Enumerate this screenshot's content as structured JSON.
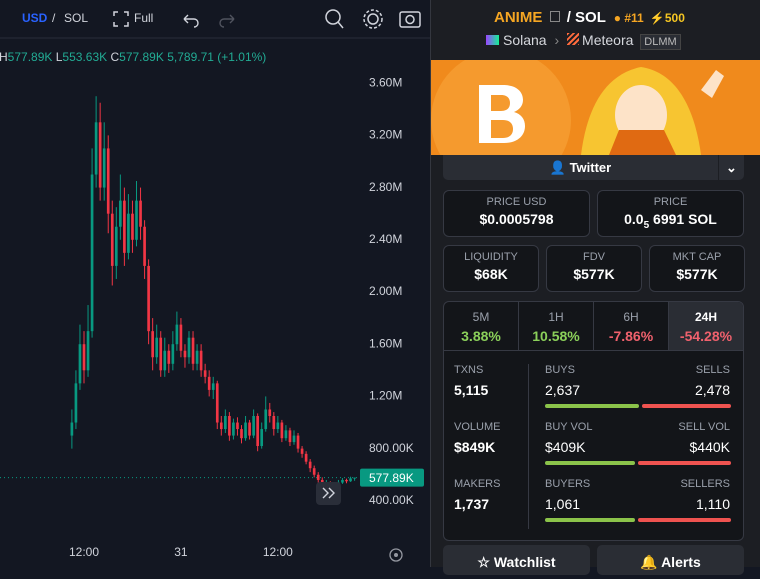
{
  "toolbar": {
    "currency": "USD",
    "separator": "/",
    "quote": "SOL",
    "full": "Full"
  },
  "readout": {
    "high_key": "H",
    "high": "577.89K",
    "low_key": "L",
    "low": "553.63K",
    "close_key": "C",
    "close": "577.89K",
    "change": "5,789.71 (+1.01%)"
  },
  "chart_data": {
    "type": "candlestick",
    "x": [
      10.5,
      11,
      11.5,
      12,
      12.5,
      13,
      13.5,
      14,
      14.5,
      15,
      15.5,
      16,
      16.5,
      17,
      17.5,
      18,
      18.5,
      19,
      19.5,
      20,
      20.5,
      21,
      21.5,
      22,
      22.5,
      23,
      23.5,
      24,
      24.5,
      25,
      25.5,
      26,
      26.5,
      27,
      27.5,
      28,
      28.5,
      29,
      29.5,
      30,
      30.5,
      31,
      31.5,
      32,
      32.5,
      33,
      33.5,
      34,
      34.5,
      35,
      35.5,
      36,
      36.5,
      37,
      37.5,
      38,
      38.5,
      39,
      39.5,
      40,
      40.5,
      41,
      41.5,
      42,
      42.5,
      43,
      43.5,
      44,
      44.5,
      45,
      45.5
    ],
    "candles": [
      [
        900000,
        1100000,
        800000,
        1000000
      ],
      [
        1000000,
        1400000,
        950000,
        1300000
      ],
      [
        1300000,
        1750000,
        1250000,
        1600000
      ],
      [
        1600000,
        1700000,
        1300000,
        1400000
      ],
      [
        1400000,
        1900000,
        1350000,
        1700000
      ],
      [
        1700000,
        3100000,
        1650000,
        2900000
      ],
      [
        2900000,
        3500000,
        2800000,
        3300000
      ],
      [
        3300000,
        3450000,
        2700000,
        2800000
      ],
      [
        2800000,
        3300000,
        2700000,
        3100000
      ],
      [
        3100000,
        3200000,
        2450000,
        2600000
      ],
      [
        2600000,
        2700000,
        2050000,
        2200000
      ],
      [
        2200000,
        2650000,
        2100000,
        2500000
      ],
      [
        2500000,
        2900000,
        2400000,
        2700000
      ],
      [
        2700000,
        2800000,
        2200000,
        2300000
      ],
      [
        2300000,
        2750000,
        2250000,
        2600000
      ],
      [
        2600000,
        2700000,
        2300000,
        2400000
      ],
      [
        2400000,
        2850000,
        2350000,
        2700000
      ],
      [
        2700000,
        2800000,
        2400000,
        2500000
      ],
      [
        2500000,
        2550000,
        2100000,
        2200000
      ],
      [
        2200000,
        2250000,
        1600000,
        1700000
      ],
      [
        1700000,
        1800000,
        1400000,
        1500000
      ],
      [
        1500000,
        1750000,
        1450000,
        1650000
      ],
      [
        1650000,
        1700000,
        1350000,
        1400000
      ],
      [
        1400000,
        1650000,
        1350000,
        1550000
      ],
      [
        1550000,
        1600000,
        1380000,
        1450000
      ],
      [
        1450000,
        1700000,
        1400000,
        1600000
      ],
      [
        1600000,
        1850000,
        1550000,
        1750000
      ],
      [
        1750000,
        1800000,
        1500000,
        1550000
      ],
      [
        1550000,
        1600000,
        1420000,
        1500000
      ],
      [
        1500000,
        1700000,
        1450000,
        1650000
      ],
      [
        1650000,
        1700000,
        1400000,
        1450000
      ],
      [
        1450000,
        1600000,
        1400000,
        1550000
      ],
      [
        1550000,
        1600000,
        1350000,
        1400000
      ],
      [
        1400000,
        1450000,
        1300000,
        1350000
      ],
      [
        1350000,
        1400000,
        1200000,
        1250000
      ],
      [
        1250000,
        1350000,
        1180000,
        1300000
      ],
      [
        1300000,
        1320000,
        950000,
        1000000
      ],
      [
        1000000,
        1050000,
        900000,
        950000
      ],
      [
        950000,
        1100000,
        920000,
        1050000
      ],
      [
        1050000,
        1080000,
        860000,
        900000
      ],
      [
        900000,
        1030000,
        870000,
        1000000
      ],
      [
        1000000,
        1040000,
        900000,
        950000
      ],
      [
        950000,
        980000,
        840000,
        880000
      ],
      [
        880000,
        1050000,
        860000,
        1000000
      ],
      [
        1000000,
        1020000,
        870000,
        900000
      ],
      [
        900000,
        1100000,
        880000,
        1050000
      ],
      [
        1050000,
        1070000,
        780000,
        820000
      ],
      [
        820000,
        1000000,
        800000,
        950000
      ],
      [
        950000,
        1200000,
        930000,
        1100000
      ],
      [
        1100000,
        1150000,
        1000000,
        1050000
      ],
      [
        1050000,
        1080000,
        900000,
        950000
      ],
      [
        950000,
        1050000,
        920000,
        1000000
      ],
      [
        1000000,
        1020000,
        850000,
        880000
      ],
      [
        880000,
        980000,
        860000,
        940000
      ],
      [
        940000,
        960000,
        820000,
        850000
      ],
      [
        850000,
        940000,
        830000,
        900000
      ],
      [
        900000,
        920000,
        770000,
        800000
      ],
      [
        800000,
        820000,
        730000,
        760000
      ],
      [
        760000,
        780000,
        680000,
        700000
      ],
      [
        700000,
        720000,
        620000,
        650000
      ],
      [
        650000,
        670000,
        580000,
        600000
      ],
      [
        600000,
        620000,
        540000,
        560000
      ],
      [
        560000,
        580000,
        500000,
        520000
      ],
      [
        520000,
        560000,
        505000,
        540000
      ],
      [
        540000,
        550000,
        480000,
        500000
      ],
      [
        500000,
        535000,
        490000,
        520000
      ],
      [
        520000,
        560000,
        510000,
        540000
      ],
      [
        540000,
        575000,
        530000,
        560000
      ],
      [
        560000,
        570000,
        535000,
        550000
      ],
      [
        550000,
        585000,
        545000,
        572100
      ],
      [
        572100,
        577890,
        553630,
        577890
      ]
    ],
    "xlim": [
      1.6,
      53.6
    ],
    "xticks": [
      {
        "value": 12,
        "label": "12:00"
      },
      {
        "value": 24,
        "label": "31"
      },
      {
        "value": 36,
        "label": "12:00"
      }
    ],
    "ylim": [
      100000,
      3900000
    ],
    "yticks": [
      {
        "value": 400000,
        "label": "400.00K"
      },
      {
        "value": 800000,
        "label": "800.00K"
      },
      {
        "value": 1200000,
        "label": "1.20M"
      },
      {
        "value": 1600000,
        "label": "1.60M"
      },
      {
        "value": 2000000,
        "label": "2.00M"
      },
      {
        "value": 2400000,
        "label": "2.40M"
      },
      {
        "value": 2800000,
        "label": "2.80M"
      },
      {
        "value": 3200000,
        "label": "3.20M"
      },
      {
        "value": 3600000,
        "label": "3.60M"
      }
    ],
    "grid": false,
    "last_price": {
      "value": 577890,
      "label": "577.89K"
    },
    "up_color": "#089981",
    "down_color": "#f23645"
  },
  "pair": {
    "name": "ANIME",
    "separator": "/",
    "quote": "SOL",
    "rank": "#11",
    "boosts": "500",
    "chain": "Solana",
    "dex": "Meteora",
    "tag": "DLMM"
  },
  "twitter": "Twitter",
  "prices": {
    "usd_label": "PRICE USD",
    "usd": "$0.0005798",
    "sol_label": "PRICE",
    "sol_lead": "0.0",
    "sol_zeros": "5",
    "sol_rest": "6991 SOL"
  },
  "stats": [
    {
      "label": "LIQUIDITY",
      "value": "$68K"
    },
    {
      "label": "FDV",
      "value": "$577K"
    },
    {
      "label": "MKT CAP",
      "value": "$577K"
    }
  ],
  "tabs": [
    {
      "label": "5M",
      "value": "3.88%"
    },
    {
      "label": "1H",
      "value": "10.58%"
    },
    {
      "label": "6H",
      "value": "-7.86%"
    },
    {
      "label": "24H",
      "value": "-54.28%"
    }
  ],
  "txns": [
    {
      "label": "TXNS",
      "value": "5,115",
      "left_label": "BUYS",
      "left": "2,637",
      "right_label": "SELLS",
      "right": "2,478"
    },
    {
      "label": "VOLUME",
      "value": "$849K",
      "left_label": "BUY VOL",
      "left": "$409K",
      "right_label": "SELL VOL",
      "right": "$440K"
    },
    {
      "label": "MAKERS",
      "value": "1,737",
      "left_label": "BUYERS",
      "left": "1,061",
      "right_label": "SELLERS",
      "right": "1,110"
    }
  ],
  "buttons": {
    "watchlist": "Watchlist",
    "alerts": "Alerts"
  }
}
